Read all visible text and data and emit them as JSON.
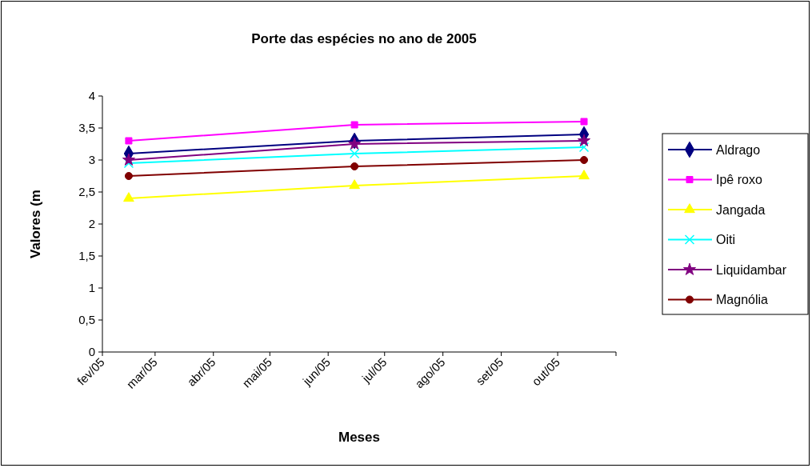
{
  "chart_data": {
    "type": "line",
    "title": "Porte das espécies no ano de 2005",
    "xlabel": "Meses",
    "ylabel": "Valores (m",
    "x": [
      "2005-02-15",
      "2005-06-15",
      "2005-10-15"
    ],
    "series": [
      {
        "name": "Aldrago",
        "color": "#000080",
        "marker": "diamond",
        "values": [
          3.1,
          3.3,
          3.4
        ]
      },
      {
        "name": "Ipê roxo",
        "color": "#ff00ff",
        "marker": "square",
        "values": [
          3.3,
          3.55,
          3.6
        ]
      },
      {
        "name": "Jangada",
        "color": "#ffff00",
        "marker": "triangle",
        "values": [
          2.4,
          2.6,
          2.75
        ]
      },
      {
        "name": "Oiti",
        "color": "#00ffff",
        "marker": "cross",
        "values": [
          2.95,
          3.1,
          3.2
        ]
      },
      {
        "name": "Liquidambar",
        "color": "#800080",
        "marker": "star",
        "values": [
          3.0,
          3.25,
          3.3
        ]
      },
      {
        "name": "Magnólia",
        "color": "#800000",
        "marker": "circle",
        "values": [
          2.75,
          2.9,
          3.0
        ]
      }
    ],
    "xlim": [
      "2005-02-01",
      "2005-11-01"
    ],
    "xticks": [
      {
        "value": "2005-02-01",
        "label": "fev/05"
      },
      {
        "value": "2005-03-01",
        "label": "mar/05"
      },
      {
        "value": "2005-04-01",
        "label": "abr/05"
      },
      {
        "value": "2005-05-01",
        "label": "mai/05"
      },
      {
        "value": "2005-06-01",
        "label": "jun/05"
      },
      {
        "value": "2005-07-01",
        "label": "jul/05"
      },
      {
        "value": "2005-08-01",
        "label": "ago/05"
      },
      {
        "value": "2005-09-01",
        "label": "set/05"
      },
      {
        "value": "2005-10-01",
        "label": "out/05"
      },
      {
        "value": "2005-11-01",
        "label": null
      }
    ],
    "ylim": [
      0,
      4
    ],
    "yticks": [
      {
        "value": 0,
        "label": "0"
      },
      {
        "value": 0.5,
        "label": "0,5"
      },
      {
        "value": 1,
        "label": "1"
      },
      {
        "value": 1.5,
        "label": "1,5"
      },
      {
        "value": 2,
        "label": "2"
      },
      {
        "value": 2.5,
        "label": "2,5"
      },
      {
        "value": 3,
        "label": "3"
      },
      {
        "value": 3.5,
        "label": "3,5"
      },
      {
        "value": 4,
        "label": "4"
      }
    ],
    "grid": false,
    "legend": "right",
    "line_style": "solid"
  }
}
